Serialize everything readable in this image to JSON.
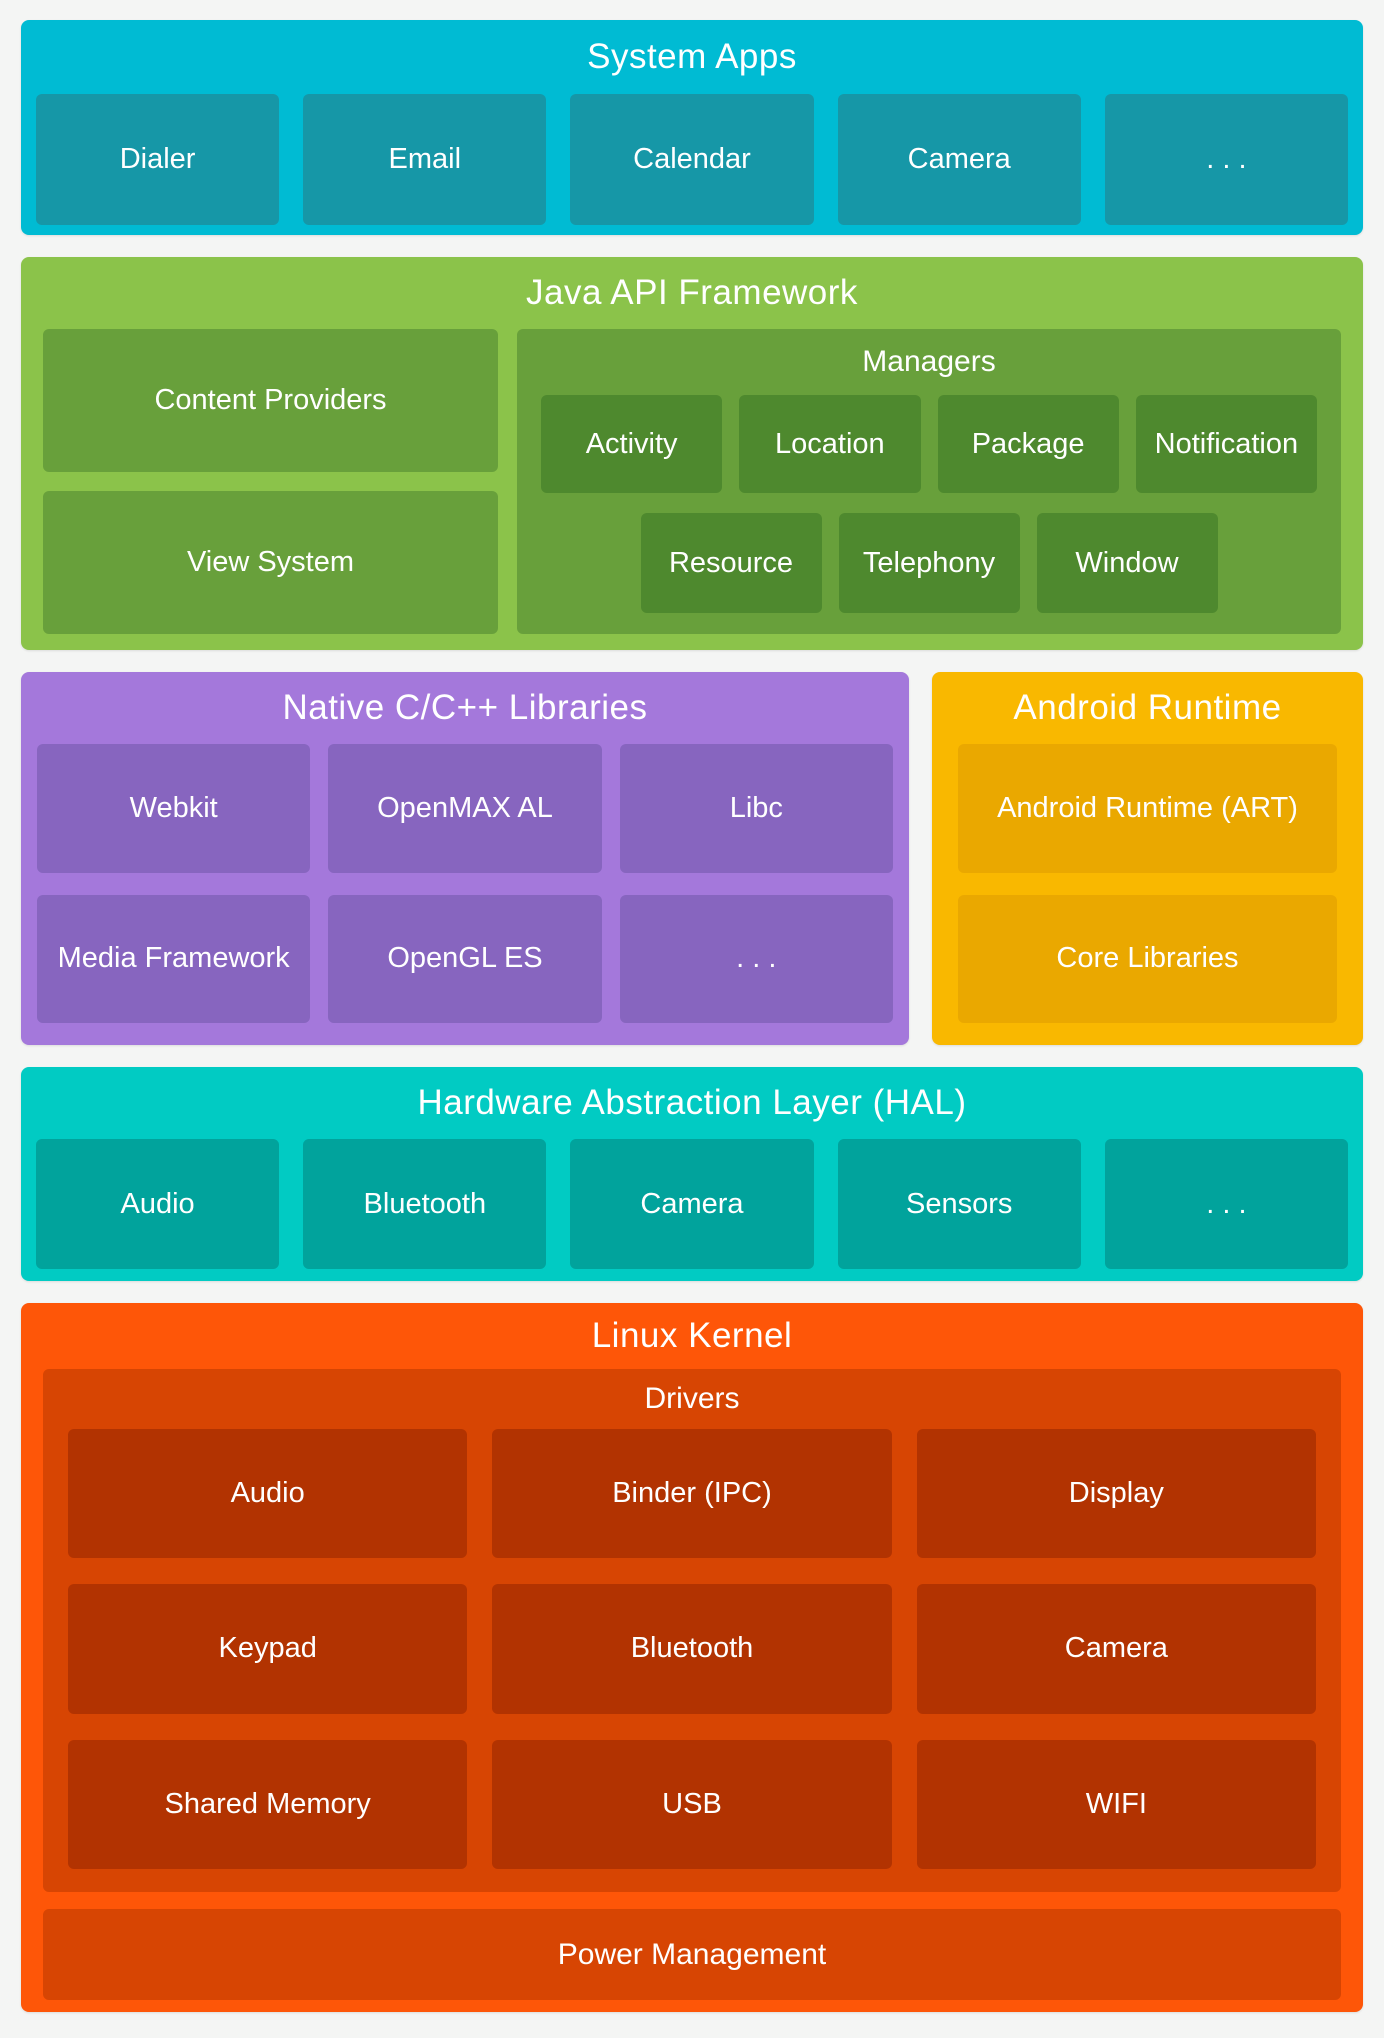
{
  "colors": {
    "background": "#F4F5F4",
    "text": "#FFFFFF",
    "system_apps_outer": "#00BBD3",
    "system_apps_chip": "#1697A7",
    "java_outer": "#8BC34A",
    "java_box": "#68A03B",
    "java_manager_chip": "#4E892E",
    "native_outer": "#A478DB",
    "native_chip": "#8765BF",
    "runtime_outer": "#F9B800",
    "runtime_box": "#EAA800",
    "hal_outer": "#01CBC3",
    "hal_chip": "#01A39C",
    "kernel_outer": "#FE5608",
    "kernel_box": "#D74503",
    "kernel_chip": "#B23301"
  },
  "system_apps": {
    "title": "System Apps",
    "chips": [
      "Dialer",
      "Email",
      "Calendar",
      "Camera",
      ". . ."
    ]
  },
  "java_api": {
    "title": "Java API Framework",
    "boxes": [
      "Content Providers",
      "View System"
    ],
    "managers": {
      "title": "Managers",
      "row1": [
        "Activity",
        "Location",
        "Package",
        "Notification"
      ],
      "row2": [
        "Resource",
        "Telephony",
        "Window"
      ]
    }
  },
  "native_libs": {
    "title": "Native C/C++ Libraries",
    "chips": [
      "Webkit",
      "OpenMAX AL",
      "Libc",
      "Media Framework",
      "OpenGL ES",
      ". . ."
    ]
  },
  "android_runtime": {
    "title": "Android Runtime",
    "boxes": [
      "Android Runtime (ART)",
      "Core Libraries"
    ]
  },
  "hal": {
    "title": "Hardware Abstraction Layer (HAL)",
    "chips": [
      "Audio",
      "Bluetooth",
      "Camera",
      "Sensors",
      ". . ."
    ]
  },
  "linux_kernel": {
    "title": "Linux Kernel",
    "drivers": {
      "title": "Drivers",
      "chips": [
        "Audio",
        "Binder (IPC)",
        "Display",
        "Keypad",
        "Bluetooth",
        "Camera",
        "Shared Memory",
        "USB",
        "WIFI"
      ]
    },
    "power": "Power Management"
  }
}
